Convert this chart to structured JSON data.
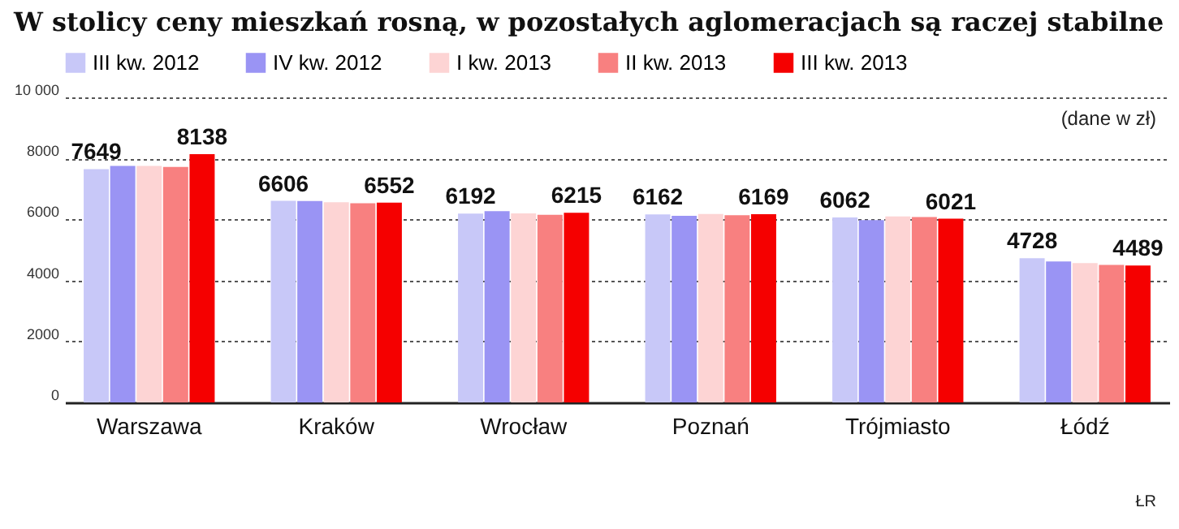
{
  "chart_data": {
    "type": "bar",
    "title": "W stolicy ceny mieszkań rosną, w pozostałych aglomeracjach są raczej stabilne",
    "categories": [
      "Warszawa",
      "Kraków",
      "Wrocław",
      "Poznań",
      "Trójmiasto",
      "Łódź"
    ],
    "series": [
      {
        "name": "III kw. 2012",
        "color": "#c8c8f8",
        "values": [
          7649,
          6606,
          6192,
          6162,
          6062,
          4728
        ],
        "value_labels": [
          "7649",
          "6606",
          "6192",
          "6162",
          "6062",
          "4728"
        ]
      },
      {
        "name": "IV kw. 2012",
        "color": "#9a94f4",
        "values": [
          7750,
          6600,
          6270,
          6120,
          5980,
          4620
        ]
      },
      {
        "name": "I kw. 2013",
        "color": "#fdd4d4",
        "values": [
          7750,
          6560,
          6200,
          6180,
          6100,
          4570
        ]
      },
      {
        "name": "II kw. 2013",
        "color": "#f88080",
        "values": [
          7720,
          6530,
          6150,
          6140,
          6080,
          4510
        ]
      },
      {
        "name": "III kw. 2013",
        "color": "#f50000",
        "values": [
          8138,
          6552,
          6215,
          6169,
          6021,
          4489
        ],
        "value_labels": [
          "8138",
          "6552",
          "6215",
          "6169",
          "6021",
          "4489"
        ]
      }
    ],
    "ylim": [
      0,
      10000
    ],
    "yticks": [
      0,
      2000,
      4000,
      6000,
      8000,
      {
        "value": 10000,
        "label": "10 000"
      }
    ],
    "grid": "y",
    "legend": "top left",
    "annotations": [
      "(dane w zł)",
      "ŁR"
    ]
  }
}
